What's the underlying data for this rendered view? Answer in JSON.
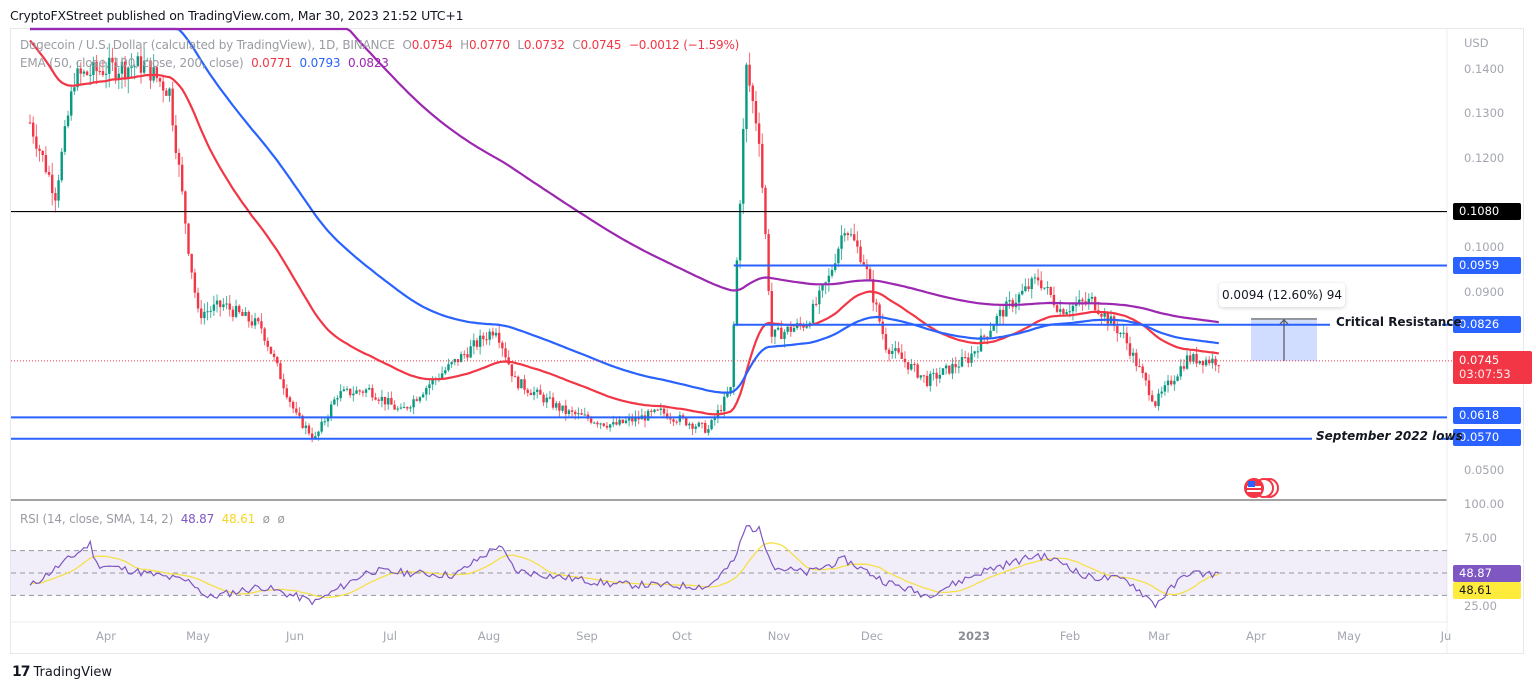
{
  "header": {
    "published": "CryptoFXStreet published on TradingView.com, Mar 30, 2023 21:52 UTC+1"
  },
  "legend": {
    "symbol": "Dogecoin / U.S. Dollar (calculated by TradingView), 1D, BINANCE",
    "o_label": "O",
    "o": "0.0754",
    "h_label": "H",
    "h": "0.0770",
    "l_label": "L",
    "l": "0.0732",
    "c_label": "C",
    "c": "0.0745",
    "change": "−0.0012 (−1.59%)",
    "ema_label": "EMA (50, close, 100, close, 200, close)",
    "ema50": "0.0771",
    "ema100": "0.0793",
    "ema200": "0.0823"
  },
  "rsi_legend": {
    "label": "RSI (14, close, SMA, 14, 2)",
    "rsi": "48.87",
    "sma": "48.61",
    "extra1": "ø",
    "extra2": "ø"
  },
  "price_axis": {
    "currency": "USD",
    "ticks": [
      "0.1400",
      "0.1300",
      "0.1200",
      "0.1000",
      "0.0900",
      "0.0500"
    ],
    "labels": [
      {
        "value": "0.1080",
        "color": "#000000"
      },
      {
        "value": "0.0959",
        "color": "#2962ff"
      },
      {
        "value": "0.0826",
        "color": "#2962ff"
      },
      {
        "value": "0.0745",
        "color": "#f23645",
        "countdown": "03:07:53"
      },
      {
        "value": "0.0618",
        "color": "#2962ff"
      },
      {
        "value": "0.0570",
        "color": "#2962ff"
      }
    ]
  },
  "rsi_axis": {
    "ticks": [
      "100.00",
      "75.00",
      "25.00"
    ],
    "rsi_label": {
      "value": "48.87",
      "color": "#7e57c2"
    },
    "sma_label": {
      "value": "48.61",
      "color": "#ffeb3b"
    }
  },
  "time_axis": [
    "Apr",
    "May",
    "Jun",
    "Jul",
    "Aug",
    "Sep",
    "Oct",
    "Nov",
    "Dec",
    "2023",
    "Feb",
    "Mar",
    "Apr",
    "May",
    "Ju"
  ],
  "annotations": {
    "critical_resistance": "Critical Resistance",
    "september_lows": "September 2022 lows",
    "measure": "0.0094 (12.60%) 94"
  },
  "footer": {
    "brand": "TradingView"
  },
  "colors": {
    "up": "#089981",
    "down": "#f23645",
    "ema50": "#f23645",
    "ema100": "#2962ff",
    "ema200": "#9c27b0",
    "hline": "#2962ff",
    "rsi": "#7e57c2",
    "rsi_sma": "#ffeb3b"
  },
  "chart_data": {
    "type": "candlestick",
    "title": "Dogecoin / U.S. Dollar (calculated by TradingView), 1D, BINANCE",
    "ylabel": "USD",
    "ylim": [
      0.046,
      0.146
    ],
    "x_range": "Mar 2022 – Jun 2023",
    "ohlc_last": {
      "open": 0.0754,
      "high": 0.077,
      "low": 0.0732,
      "close": 0.0745,
      "change": -0.0012,
      "change_pct": -1.59
    },
    "horizontal_levels": [
      {
        "price": 0.108,
        "color": "#000000",
        "label": ""
      },
      {
        "price": 0.0959,
        "color": "#2962ff",
        "label": ""
      },
      {
        "price": 0.0826,
        "color": "#2962ff",
        "label": "Critical Resistance"
      },
      {
        "price": 0.0618,
        "color": "#2962ff",
        "label": ""
      },
      {
        "price": 0.057,
        "color": "#2962ff",
        "label": "September 2022 lows"
      }
    ],
    "close_path": [
      [
        "2022-03-20",
        0.128
      ],
      [
        "2022-03-28",
        0.112
      ],
      [
        "2022-04-03",
        0.138
      ],
      [
        "2022-04-12",
        0.14
      ],
      [
        "2022-04-25",
        0.141
      ],
      [
        "2022-05-03",
        0.135
      ],
      [
        "2022-05-09",
        0.1
      ],
      [
        "2022-05-12",
        0.085
      ],
      [
        "2022-05-20",
        0.087
      ],
      [
        "2022-06-01",
        0.082
      ],
      [
        "2022-06-12",
        0.062
      ],
      [
        "2022-06-18",
        0.057
      ],
      [
        "2022-06-25",
        0.067
      ],
      [
        "2022-07-05",
        0.068
      ],
      [
        "2022-07-15",
        0.063
      ],
      [
        "2022-07-25",
        0.07
      ],
      [
        "2022-08-14",
        0.082
      ],
      [
        "2022-08-20",
        0.07
      ],
      [
        "2022-09-05",
        0.063
      ],
      [
        "2022-09-20",
        0.06
      ],
      [
        "2022-10-05",
        0.063
      ],
      [
        "2022-10-20",
        0.059
      ],
      [
        "2022-10-27",
        0.068
      ],
      [
        "2022-11-01",
        0.14
      ],
      [
        "2022-11-05",
        0.125
      ],
      [
        "2022-11-09",
        0.08
      ],
      [
        "2022-11-20",
        0.083
      ],
      [
        "2022-11-27",
        0.093
      ],
      [
        "2022-12-02",
        0.105
      ],
      [
        "2022-12-08",
        0.097
      ],
      [
        "2022-12-15",
        0.078
      ],
      [
        "2022-12-28",
        0.07
      ],
      [
        "2023-01-10",
        0.075
      ],
      [
        "2023-01-20",
        0.085
      ],
      [
        "2023-02-01",
        0.093
      ],
      [
        "2023-02-08",
        0.086
      ],
      [
        "2023-02-18",
        0.088
      ],
      [
        "2023-02-28",
        0.08
      ],
      [
        "2023-03-10",
        0.065
      ],
      [
        "2023-03-20",
        0.075
      ],
      [
        "2023-03-30",
        0.0745
      ]
    ],
    "ema_series": [
      {
        "name": "EMA 50",
        "last": 0.0771,
        "color": "#f23645"
      },
      {
        "name": "EMA 100",
        "last": 0.0793,
        "color": "#2962ff"
      },
      {
        "name": "EMA 200",
        "last": 0.0823,
        "color": "#9c27b0"
      }
    ],
    "rsi": {
      "name": "RSI (14, close, SMA, 14, 2)",
      "ylim": [
        0,
        100
      ],
      "bands": [
        30,
        50,
        70
      ],
      "last_rsi": 48.87,
      "last_sma": 48.61,
      "path": [
        [
          "2022-03-20",
          38
        ],
        [
          "2022-04-05",
          70
        ],
        [
          "2022-04-08",
          76
        ],
        [
          "2022-04-10",
          58
        ],
        [
          "2022-05-10",
          42
        ],
        [
          "2022-05-15",
          28
        ],
        [
          "2022-06-01",
          38
        ],
        [
          "2022-06-18",
          24
        ],
        [
          "2022-07-05",
          52
        ],
        [
          "2022-08-01",
          48
        ],
        [
          "2022-08-15",
          75
        ],
        [
          "2022-08-20",
          52
        ],
        [
          "2022-09-20",
          40
        ],
        [
          "2022-10-20",
          38
        ],
        [
          "2022-10-28",
          60
        ],
        [
          "2022-11-01",
          92
        ],
        [
          "2022-11-05",
          88
        ],
        [
          "2022-11-10",
          55
        ],
        [
          "2022-11-20",
          50
        ],
        [
          "2022-12-02",
          62
        ],
        [
          "2022-12-15",
          42
        ],
        [
          "2022-12-28",
          30
        ],
        [
          "2023-01-15",
          52
        ],
        [
          "2023-02-01",
          66
        ],
        [
          "2023-02-10",
          58
        ],
        [
          "2023-02-15",
          47
        ],
        [
          "2023-03-01",
          44
        ],
        [
          "2023-03-10",
          22
        ],
        [
          "2023-03-20",
          50
        ],
        [
          "2023-03-30",
          48.87
        ]
      ]
    },
    "measurement": {
      "delta": 0.0094,
      "pct": 12.6,
      "bars": 94,
      "from": 0.0745,
      "to": 0.0839
    }
  }
}
